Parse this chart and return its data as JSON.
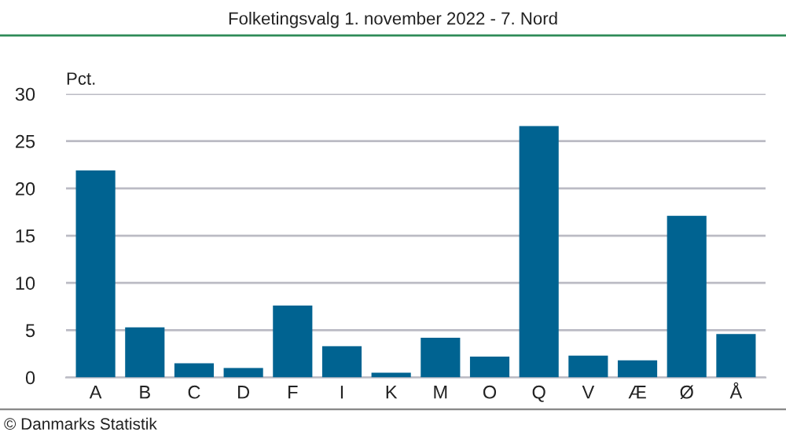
{
  "chart_data": {
    "type": "bar",
    "title": "Folketingsvalg 1. november 2022 - 7. Nord",
    "ylabel": "Pct.",
    "categories": [
      "A",
      "B",
      "C",
      "D",
      "F",
      "I",
      "K",
      "M",
      "O",
      "Q",
      "V",
      "Æ",
      "Ø",
      "Å"
    ],
    "values": [
      21.9,
      5.3,
      1.5,
      1.0,
      7.6,
      3.3,
      0.5,
      4.2,
      2.2,
      26.6,
      2.3,
      1.8,
      17.1,
      4.6
    ],
    "color": "#006391",
    "ylim": [
      0,
      30
    ],
    "yticks": [
      0,
      5,
      10,
      15,
      20,
      25,
      30
    ],
    "grid": "y",
    "annotations": [
      "© Danmarks Statistik"
    ]
  }
}
